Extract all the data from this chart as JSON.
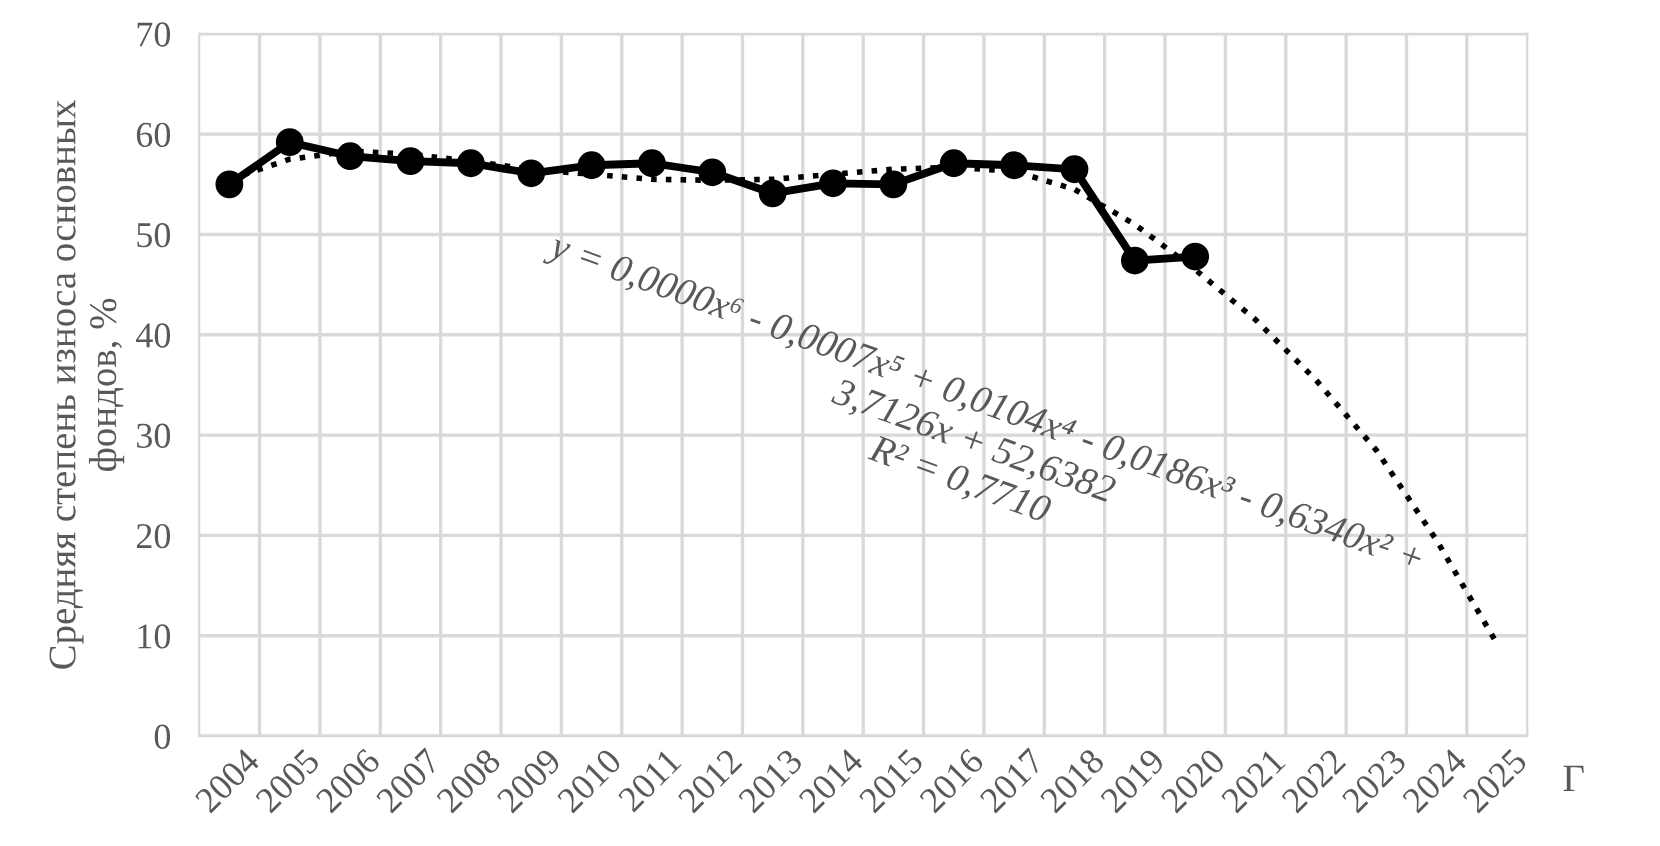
{
  "chart_data": {
    "type": "line",
    "ylabel": "Средняя степень износа основных\nфондов, %",
    "xlabel": "Г",
    "categories": [
      "2004",
      "2005",
      "2006",
      "2007",
      "2008",
      "2009",
      "2010",
      "2011",
      "2012",
      "2013",
      "2014",
      "2015",
      "2016",
      "2017",
      "2018",
      "2019",
      "2020",
      "2021",
      "2022",
      "2023",
      "2024",
      "2025"
    ],
    "series": [
      {
        "color": "#000000",
        "marker": "circle",
        "line_style": "solid",
        "values": [
          55.0,
          59.2,
          57.8,
          57.3,
          57.1,
          56.1,
          56.9,
          57.1,
          56.2,
          54.1,
          55.1,
          55.0,
          57.1,
          56.9,
          56.5,
          47.4,
          47.8,
          null,
          null,
          null,
          null,
          null
        ]
      },
      {
        "color": "#000000",
        "marker": "none",
        "line_style": "dotted",
        "values": [
          55.5,
          57.5,
          58.3,
          58.0,
          57.3,
          56.5,
          56.0,
          55.5,
          55.4,
          55.5,
          56.0,
          56.5,
          56.7,
          56.3,
          54.5,
          51.0,
          46.5,
          41.5,
          35.5,
          28.5,
          19.5,
          9.2
        ]
      }
    ],
    "ylim": [
      0,
      70
    ],
    "yticks": [
      0,
      10,
      20,
      30,
      40,
      50,
      60,
      70
    ],
    "grid": true,
    "annotations": [
      "y = 0,0000x⁶ - 0,0007x⁵ + 0,0104x⁴ - 0,0186x³ - 0,6340x² +\n3,7126x + 52,6382\nR² = 0,7710"
    ]
  }
}
